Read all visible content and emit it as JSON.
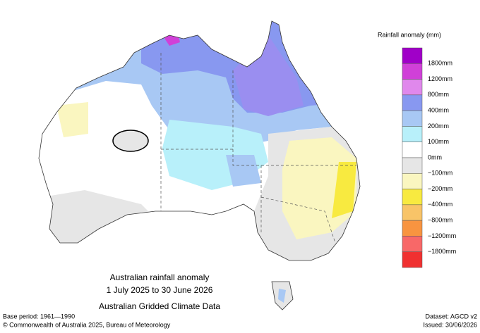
{
  "legend": {
    "title": "Rainfall anomaly (mm)",
    "labels": [
      "1800mm",
      "1200mm",
      "800mm",
      "400mm",
      "200mm",
      "100mm",
      "0mm",
      "−100mm",
      "−200mm",
      "−400mm",
      "−800mm",
      "−1200mm",
      "−1800mm"
    ],
    "colors": [
      "#a000c8",
      "#d040d8",
      "#e088ec",
      "#8898f0",
      "#a8c8f4",
      "#b8f0fa",
      "#ffffff",
      "#e6e6e6",
      "#faf6c0",
      "#f8ea40",
      "#f8c468",
      "#f89440",
      "#f86868",
      "#f03030"
    ]
  },
  "caption": {
    "title": "Australian rainfall anomaly",
    "period": "1 July 2025 to 30 June 2026",
    "source": "Australian Gridded Climate Data"
  },
  "footer": {
    "base_period": "Base period: 1961—1990",
    "copyright": "© Commonwealth of Australia 2025, Bureau of Meteorology",
    "dataset": "Dataset: AGCD v2",
    "issued": "Issued: 30/06/2026"
  }
}
